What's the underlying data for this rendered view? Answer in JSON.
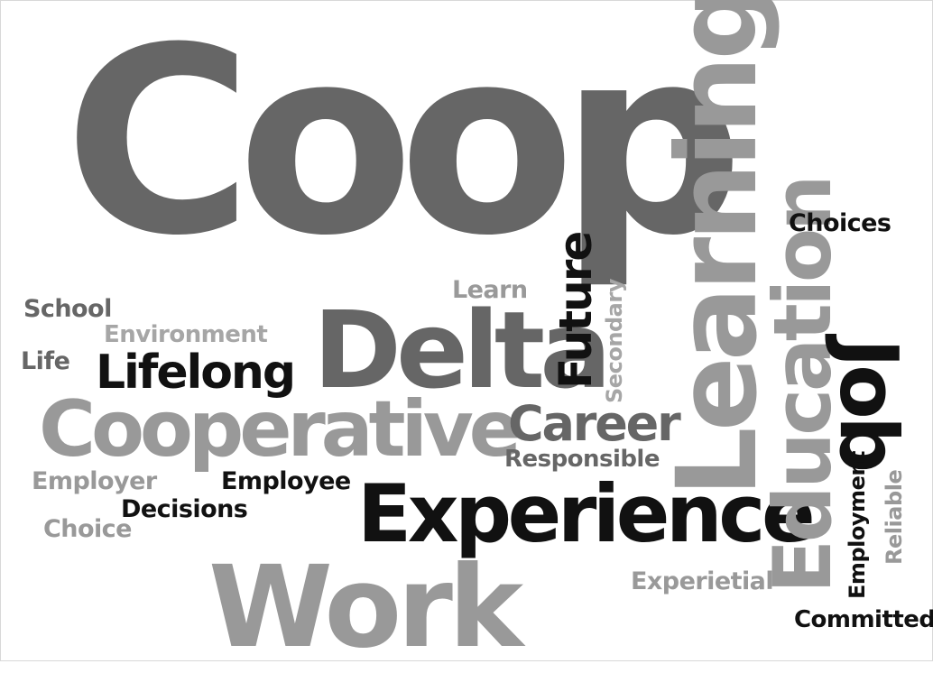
{
  "words": {
    "coop": "Coop",
    "learning": "Learning",
    "delta": "Delta",
    "work": "Work",
    "experience": "Experience",
    "cooperative": "Cooperative",
    "education": "Education",
    "job": "Job",
    "lifelong": "Lifelong",
    "career": "Career",
    "future": "Future",
    "choices": "Choices",
    "school": "School",
    "environment": "Environment",
    "life": "Life",
    "learn": "Learn",
    "secondary": "Secondary",
    "responsible": "Responsible",
    "employer": "Employer",
    "employee": "Employee",
    "decisions": "Decisions",
    "choice": "Choice",
    "experietial": "Experietial",
    "employment": "Employment",
    "reliable": "Reliable",
    "committed": "Committed"
  },
  "colors": {
    "dark": "#111111",
    "mid": "#666666",
    "light": "#999999",
    "background": "#ffffff"
  }
}
